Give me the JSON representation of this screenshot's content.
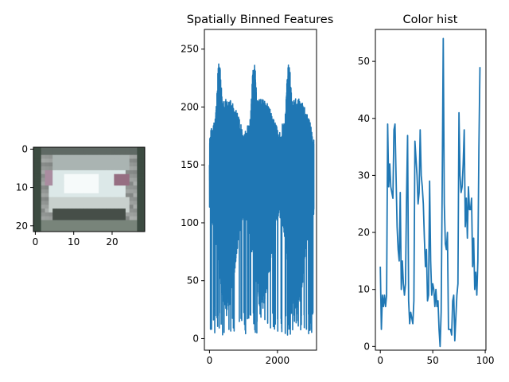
{
  "chart_data": [
    {
      "type": "image",
      "title": "",
      "xlabel": "",
      "ylabel": "",
      "xlim": [
        -0.5,
        28.5
      ],
      "ylim": [
        21.5,
        -0.5
      ],
      "xticks": [
        0,
        10,
        20
      ],
      "yticks": [
        0,
        10,
        20
      ],
      "description_rows": 22,
      "description_cols": 29
    },
    {
      "type": "line",
      "title": "Spatially Binned Features",
      "xlabel": "",
      "ylabel": "",
      "xlim": [
        -150,
        3150
      ],
      "ylim": [
        -10,
        267
      ],
      "xticks": [
        0,
        2000
      ],
      "yticks": [
        0,
        50,
        100,
        150,
        200,
        250
      ],
      "color": "#1f77b4",
      "n_points": 3072,
      "channel_period": 1024,
      "band_peaks": [
        255,
        255,
        255
      ],
      "band_troughs": [
        3,
        7,
        5
      ],
      "x_range": [
        0,
        3071
      ]
    },
    {
      "type": "line",
      "title": "Color hist",
      "xlabel": "",
      "ylabel": "",
      "xlim": [
        -4.7,
        100.7
      ],
      "ylim": [
        -0.65,
        55.6
      ],
      "xticks": [
        0,
        50,
        100
      ],
      "yticks": [
        0,
        10,
        20,
        30,
        40,
        50
      ],
      "color": "#1f77b4",
      "x": [
        0,
        1,
        2,
        3,
        4,
        5,
        6,
        7,
        8,
        9,
        10,
        11,
        12,
        13,
        14,
        15,
        16,
        17,
        18,
        19,
        20,
        21,
        22,
        23,
        24,
        25,
        26,
        27,
        28,
        29,
        30,
        31,
        32,
        33,
        34,
        35,
        36,
        37,
        38,
        39,
        40,
        41,
        42,
        43,
        44,
        45,
        46,
        47,
        48,
        49,
        50,
        51,
        52,
        53,
        54,
        55,
        56,
        57,
        58,
        59,
        60,
        61,
        62,
        63,
        64,
        65,
        66,
        67,
        68,
        69,
        70,
        71,
        72,
        73,
        74,
        75,
        76,
        77,
        78,
        79,
        80,
        81,
        82,
        83,
        84,
        85,
        86,
        87,
        88,
        89,
        90,
        91,
        92,
        93,
        94,
        95
      ],
      "values": [
        14,
        3,
        9,
        7,
        9,
        7,
        9,
        39,
        28,
        32,
        28,
        27,
        26,
        38,
        39,
        30,
        21,
        17,
        15,
        27,
        10,
        15,
        11,
        9,
        11,
        26,
        37,
        8,
        4,
        6,
        5,
        4,
        8,
        36,
        33,
        30,
        25,
        27,
        38,
        30,
        28,
        25,
        19,
        14,
        17,
        8,
        9,
        29,
        15,
        9,
        11,
        10,
        7,
        10,
        7,
        8,
        3,
        0,
        6,
        28,
        54,
        25,
        18,
        17,
        20,
        3,
        3,
        3,
        2,
        8,
        9,
        1,
        5,
        9,
        11,
        41,
        30,
        27,
        28,
        32,
        38,
        21,
        26,
        19,
        28,
        24,
        24,
        26,
        14,
        19,
        10,
        13,
        9,
        15,
        35,
        49
      ]
    }
  ]
}
